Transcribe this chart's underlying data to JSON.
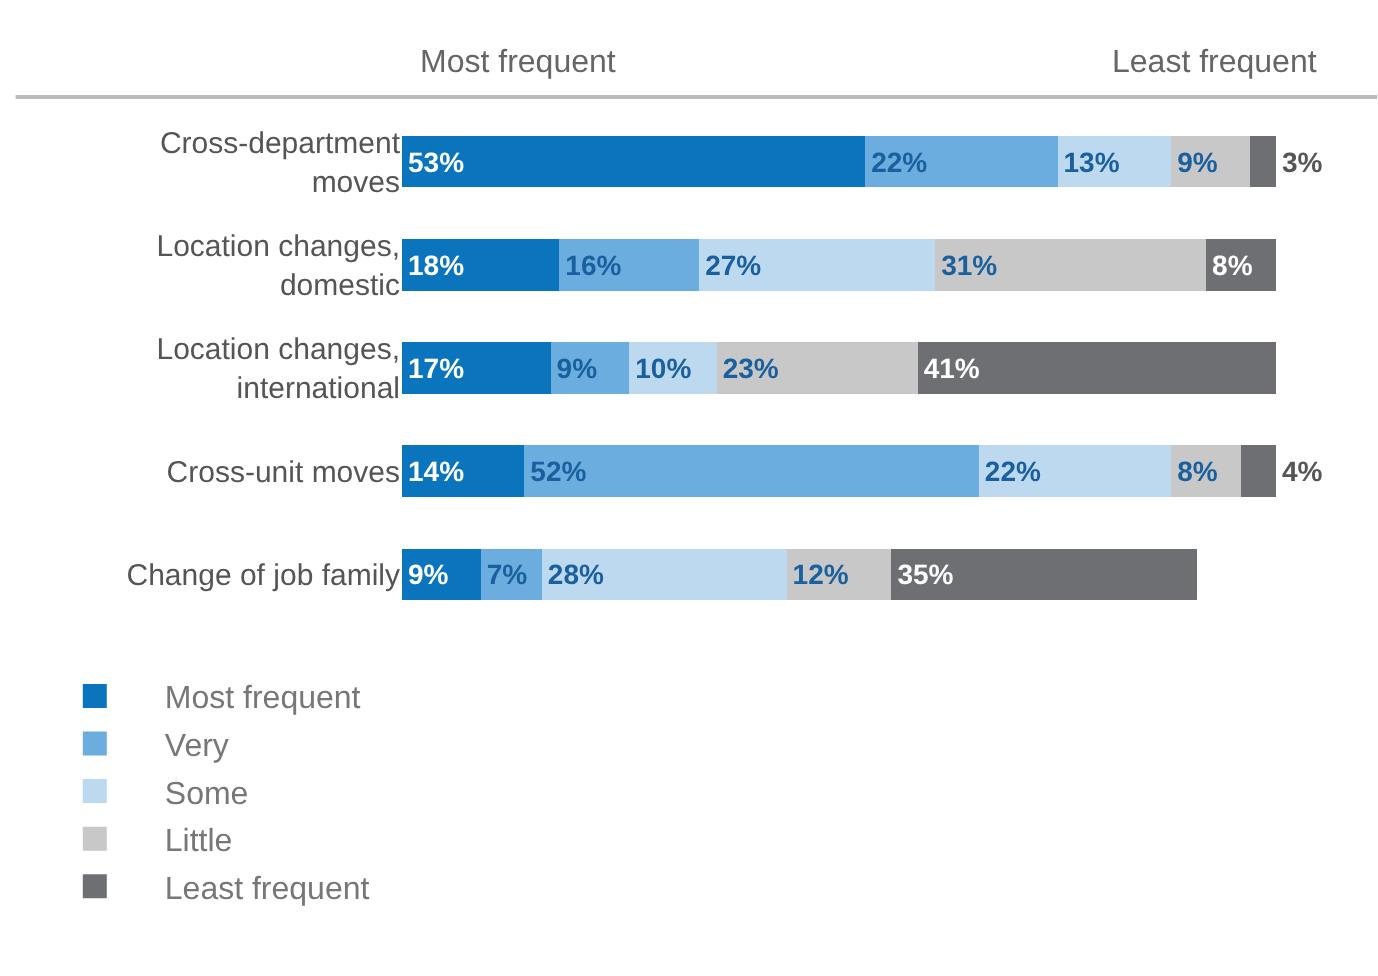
{
  "chart_data": {
    "type": "bar",
    "orientation": "horizontal",
    "stacked": true,
    "categories": [
      "Cross-department moves",
      "Location changes, domestic",
      "Location changes, international",
      "Cross-unit moves",
      "Change of job family"
    ],
    "series": [
      {
        "name": "Most frequent",
        "color": "#0a75bc",
        "values": [
          53,
          18,
          17,
          14,
          9
        ],
        "value_labels": [
          "53%",
          "18%",
          "17%",
          "14%",
          "9%"
        ]
      },
      {
        "name": "Very",
        "color": "#6badde",
        "values": [
          22,
          16,
          9,
          52,
          7
        ],
        "value_labels": [
          "22%",
          "16%",
          "9%",
          "52%",
          "7%"
        ]
      },
      {
        "name": "Some",
        "color": "#bdd9f0",
        "values": [
          13,
          27,
          10,
          22,
          28
        ],
        "value_labels": [
          "13%",
          "27%",
          "10%",
          "22%",
          "28%"
        ]
      },
      {
        "name": "Little",
        "color": "#c8c8c8",
        "values": [
          9,
          31,
          23,
          8,
          12
        ],
        "value_labels": [
          "9%",
          "31%",
          "23%",
          "8%",
          "12%"
        ]
      },
      {
        "name": "Least frequent",
        "color": "#6e6f73",
        "values": [
          3,
          8,
          41,
          4,
          35
        ],
        "value_labels": [
          "3%",
          "8%",
          "41%",
          "4%",
          "35%"
        ]
      }
    ],
    "annotations": [
      "Most frequent",
      "Least frequent"
    ],
    "legend": "bottom left",
    "grid": false,
    "tick_labels": "y"
  }
}
